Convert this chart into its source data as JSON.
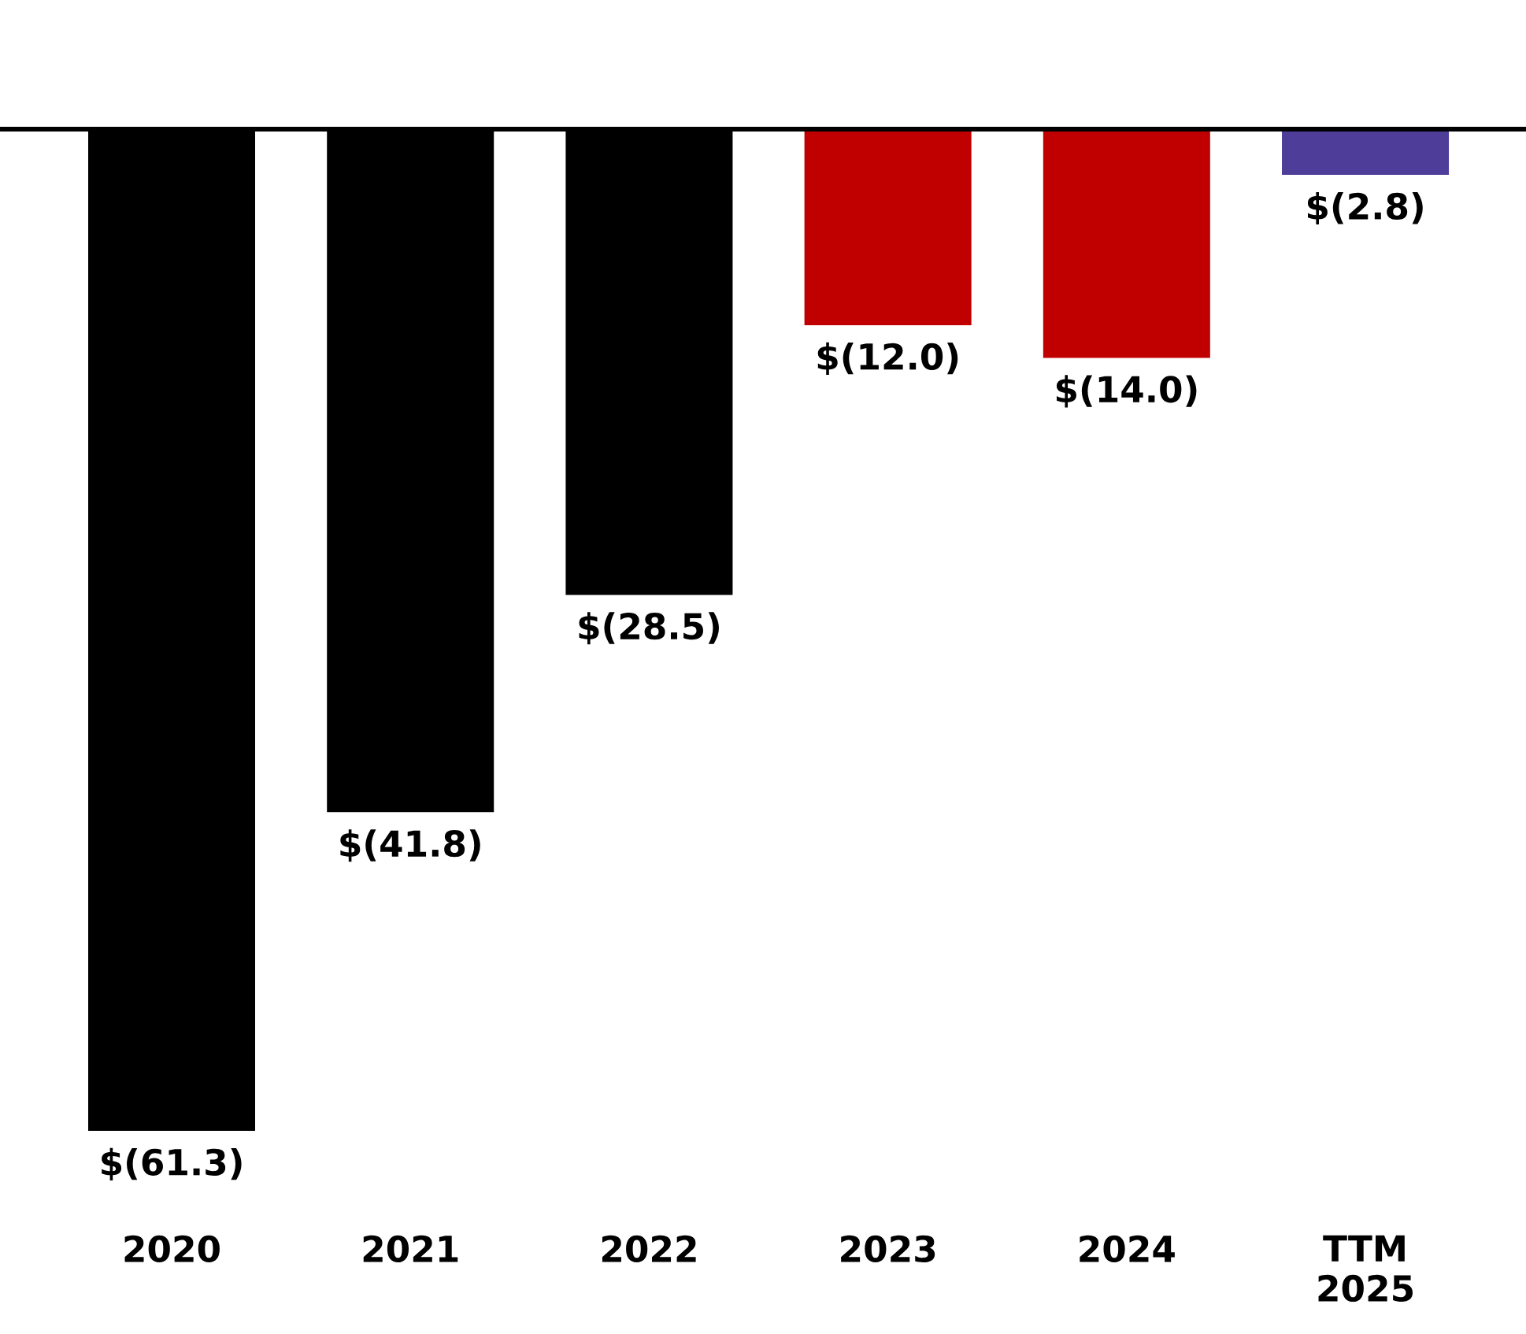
{
  "chart_data": {
    "type": "bar",
    "categories": [
      "2020",
      "2021",
      "2022",
      "2023",
      "2024",
      "TTM 2025"
    ],
    "values": [
      -61.3,
      -41.8,
      -28.5,
      -12.0,
      -14.0,
      -2.8
    ],
    "colors": [
      "#000000",
      "#000000",
      "#000000",
      "#c00000",
      "#c00000",
      "#4e3d99"
    ],
    "value_labels": [
      "$(61.3)",
      "$(41.8)",
      "$(28.5)",
      "$(12.0)",
      "$(14.0)",
      "$(2.8)"
    ]
  }
}
